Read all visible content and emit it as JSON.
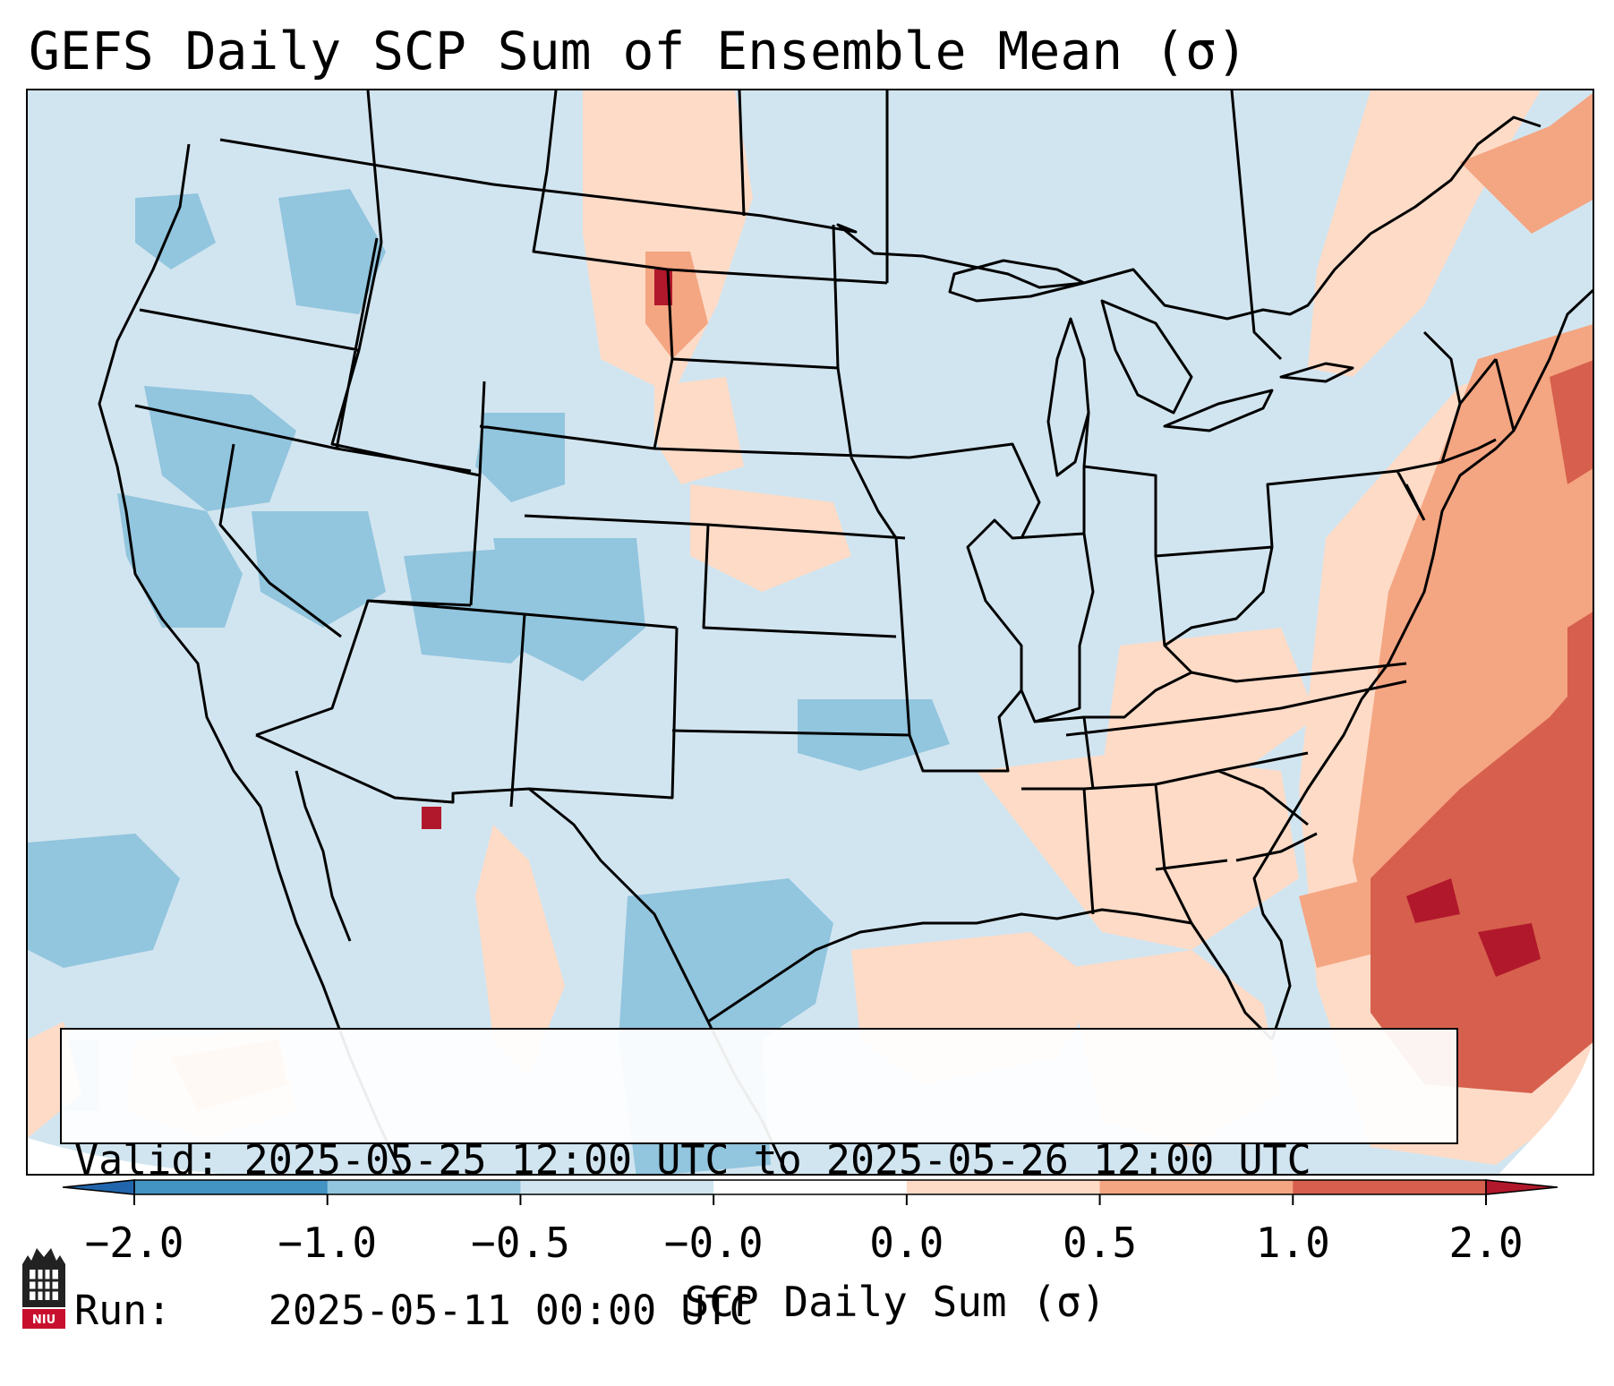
{
  "title": "GEFS Daily SCP Sum of Ensemble Mean (σ)",
  "info": {
    "valid_label": "Valid:",
    "valid_value": "2025-05-25 12:00 UTC to 2025-05-26 12:00 UTC",
    "run_label": "Run:",
    "run_value": "2025-05-11 00:00 UTC"
  },
  "colorbar": {
    "label": "SCP Daily Sum (σ)",
    "ticks": [
      "−2.0",
      "−1.0",
      "−0.5",
      "−0.0",
      "0.0",
      "0.5",
      "1.0",
      "2.0"
    ],
    "bin_colors": [
      "#4393c3",
      "#92c5de",
      "#d1e5f0",
      "#ffffff",
      "#fddbc7",
      "#f4a582",
      "#d6604d"
    ],
    "extend_low_color": "#2166ac",
    "extend_high_color": "#b2182b"
  },
  "map": {
    "background_color": "#d1e5f0",
    "outside_projection_color": "#ffffff",
    "boundary_color": "#000000"
  },
  "logo": {
    "text": "NIU",
    "color": "#c8102e"
  }
}
